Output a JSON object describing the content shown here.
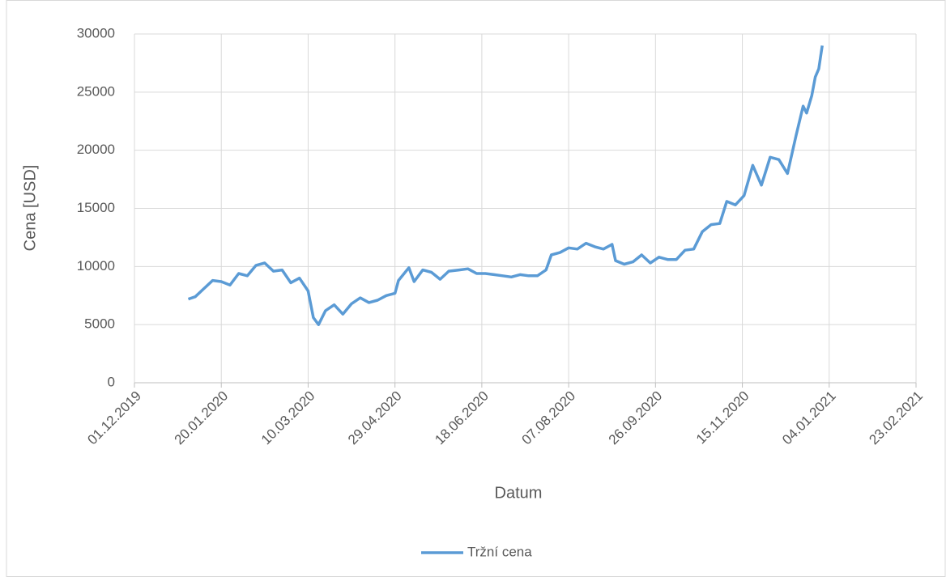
{
  "chart_data": {
    "type": "line",
    "x_label": "Datum",
    "y_label": "Cena [USD]",
    "x": [
      "01.01.2020",
      "05.01.2020",
      "10.01.2020",
      "15.01.2020",
      "20.01.2020",
      "25.01.2020",
      "30.01.2020",
      "04.02.2020",
      "09.02.2020",
      "14.02.2020",
      "19.02.2020",
      "24.02.2020",
      "29.02.2020",
      "05.03.2020",
      "10.03.2020",
      "13.03.2020",
      "16.03.2020",
      "20.03.2020",
      "25.03.2020",
      "30.03.2020",
      "04.04.2020",
      "09.04.2020",
      "14.04.2020",
      "19.04.2020",
      "24.04.2020",
      "29.04.2020",
      "01.05.2020",
      "07.05.2020",
      "10.05.2020",
      "15.05.2020",
      "20.05.2020",
      "25.05.2020",
      "30.05.2020",
      "05.06.2020",
      "10.06.2020",
      "15.06.2020",
      "20.06.2020",
      "25.06.2020",
      "30.06.2020",
      "05.07.2020",
      "10.07.2020",
      "15.07.2020",
      "20.07.2020",
      "25.07.2020",
      "28.07.2020",
      "02.08.2020",
      "07.08.2020",
      "12.08.2020",
      "17.08.2020",
      "22.08.2020",
      "27.08.2020",
      "01.09.2020",
      "03.09.2020",
      "08.09.2020",
      "13.09.2020",
      "18.09.2020",
      "23.09.2020",
      "28.09.2020",
      "03.10.2020",
      "08.10.2020",
      "13.10.2020",
      "18.10.2020",
      "23.10.2020",
      "28.10.2020",
      "02.11.2020",
      "06.11.2020",
      "11.11.2020",
      "16.11.2020",
      "21.11.2020",
      "26.11.2020",
      "01.12.2020",
      "06.12.2020",
      "11.12.2020",
      "16.12.2020",
      "20.12.2020",
      "22.12.2020",
      "25.12.2020",
      "27.12.2020",
      "29.12.2020",
      "31.12.2020"
    ],
    "series": [
      {
        "name": "Tržní cena",
        "color": "#5b9bd5",
        "values": [
          7200,
          7400,
          8100,
          8800,
          8700,
          8400,
          9400,
          9200,
          10100,
          10300,
          9600,
          9700,
          8600,
          9000,
          7900,
          5600,
          5000,
          6200,
          6700,
          5900,
          6800,
          7300,
          6900,
          7100,
          7500,
          7700,
          8800,
          9900,
          8700,
          9700,
          9500,
          8900,
          9600,
          9700,
          9800,
          9400,
          9400,
          9300,
          9200,
          9100,
          9300,
          9200,
          9200,
          9700,
          11000,
          11200,
          11600,
          11500,
          12000,
          11700,
          11500,
          11900,
          10500,
          10200,
          10400,
          11000,
          10300,
          10800,
          10600,
          10600,
          11400,
          11500,
          13000,
          13600,
          13700,
          15600,
          15300,
          16100,
          18700,
          17000,
          19400,
          19200,
          18000,
          21300,
          23800,
          23200,
          24700,
          26300,
          27000,
          29000
        ]
      }
    ],
    "xlim": [
      "01.12.2019",
      "23.02.2021"
    ],
    "xticks": [
      "01.12.2019",
      "20.01.2020",
      "10.03.2020",
      "29.04.2020",
      "18.06.2020",
      "07.08.2020",
      "26.09.2020",
      "15.11.2020",
      "04.01.2021",
      "23.02.2021"
    ],
    "ylim": [
      0,
      30000
    ],
    "yticks": [
      0,
      5000,
      10000,
      15000,
      20000,
      25000,
      30000
    ],
    "grid": true,
    "legend": "bottom"
  }
}
